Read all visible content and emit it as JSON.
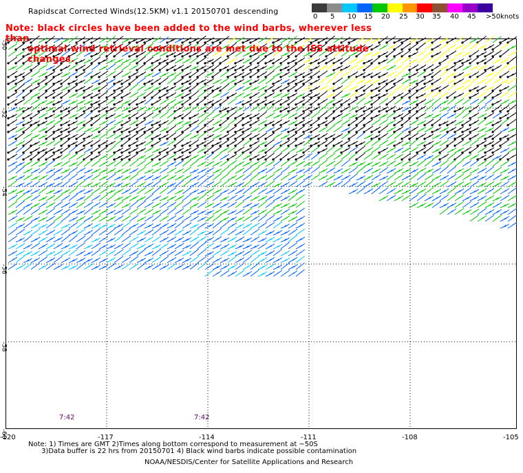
{
  "header": {
    "title": "Rapidscat Corrected Winds(12.5KM) v1.1 20150701 descending"
  },
  "notice": {
    "line1": "Note: black circles have been added to the wind barbs, wherever less than",
    "line2": "optimal wind retrieval conditions are met due to the ISS attitude changes."
  },
  "legend": {
    "unit": "knots",
    "labels": [
      "0",
      "5",
      "10",
      "15",
      "20",
      "25",
      "30",
      "35",
      "40",
      "45",
      ">50"
    ],
    "colors": [
      "#3c3c3c",
      "#8c8c8c",
      "#00c8ff",
      "#0064ff",
      "#00c800",
      "#ffff00",
      "#ff9600",
      "#ff0000",
      "#8c5032",
      "#ff00ff",
      "#9600c8",
      "#3c00a0"
    ]
  },
  "map": {
    "lon_ticks": [
      "-120",
      "-117",
      "-114",
      "-111",
      "-108",
      "-105"
    ],
    "lat_ticks": [
      "-60",
      "-58",
      "-56",
      "-54",
      "-52",
      "-50"
    ],
    "pass_times": [
      "7:42",
      "7:42"
    ]
  },
  "footer": {
    "note_line1": "Note: 1) Times are GMT 2)Times along bottom correspond to measurement at ~50S",
    "note_line2": "      3)Data buffer is 22 hrs from 20150701 4) Black wind barbs indicate possible contamination",
    "credit": "NOAA/NESDIS/Center for Satellite Applications and Research"
  }
}
